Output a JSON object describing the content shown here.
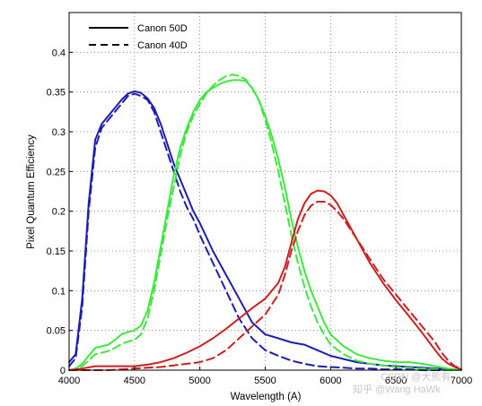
{
  "chart_data": {
    "type": "line",
    "xlabel": "Wavelength (A)",
    "ylabel": "Pixel Quantum Efficiency",
    "xlim": [
      4000,
      7000
    ],
    "ylim": [
      0,
      0.45
    ],
    "xticks": [
      4000,
      4500,
      5000,
      5500,
      6000,
      6500,
      7000
    ],
    "yticks": [
      0,
      0.05,
      0.1,
      0.15,
      0.2,
      0.25,
      0.3,
      0.35,
      0.4
    ],
    "ytick_labels": [
      "0",
      "0.05",
      "0.1",
      "0.15",
      "0.2",
      "0.25",
      "0.3",
      "0.35",
      "0.4"
    ],
    "grid": true,
    "legend_position": "top-left",
    "legend": [
      {
        "label": "Canon 50D",
        "style": "solid"
      },
      {
        "label": "Canon 40D",
        "style": "dashed"
      }
    ],
    "series": [
      {
        "camera": "Canon 50D",
        "channel": "blue",
        "color": "#1d1db0",
        "style": "solid",
        "x": [
          4000,
          4050,
          4100,
          4150,
          4200,
          4250,
          4300,
          4350,
          4400,
          4450,
          4500,
          4550,
          4600,
          4650,
          4700,
          4750,
          4800,
          4850,
          4900,
          4950,
          5000,
          5100,
          5200,
          5300,
          5400,
          5500,
          5600,
          5700,
          5800,
          5900,
          6000,
          6100,
          6200,
          6300,
          6400,
          6500,
          6600,
          6700,
          6800,
          6900,
          7000
        ],
        "y": [
          0.01,
          0.02,
          0.09,
          0.21,
          0.29,
          0.31,
          0.32,
          0.33,
          0.34,
          0.348,
          0.351,
          0.349,
          0.342,
          0.33,
          0.31,
          0.285,
          0.26,
          0.24,
          0.22,
          0.2,
          0.185,
          0.15,
          0.12,
          0.09,
          0.06,
          0.045,
          0.04,
          0.035,
          0.032,
          0.025,
          0.018,
          0.014,
          0.01,
          0.008,
          0.006,
          0.005,
          0.004,
          0.003,
          0.002,
          0.001,
          0.0
        ]
      },
      {
        "camera": "Canon 40D",
        "channel": "blue",
        "color": "#1d1db0",
        "style": "dashed",
        "x": [
          4000,
          4050,
          4100,
          4150,
          4200,
          4250,
          4300,
          4350,
          4400,
          4450,
          4500,
          4550,
          4600,
          4650,
          4700,
          4750,
          4800,
          4850,
          4900,
          4950,
          5000,
          5100,
          5200,
          5300,
          5400,
          5500,
          5600,
          5700,
          5800,
          5900,
          6000,
          6100,
          6200,
          6300,
          6400,
          6500,
          6600,
          6700,
          6800,
          6900,
          7000
        ],
        "y": [
          0.005,
          0.015,
          0.08,
          0.2,
          0.28,
          0.305,
          0.315,
          0.325,
          0.335,
          0.345,
          0.348,
          0.345,
          0.34,
          0.325,
          0.3,
          0.275,
          0.25,
          0.225,
          0.205,
          0.19,
          0.17,
          0.135,
          0.1,
          0.065,
          0.04,
          0.025,
          0.018,
          0.012,
          0.008,
          0.005,
          0.004,
          0.003,
          0.002,
          0.002,
          0.001,
          0.001,
          0.001,
          0.0,
          0.0,
          0.0,
          0.0
        ]
      },
      {
        "camera": "Canon 50D",
        "channel": "green",
        "color": "#3ee83e",
        "style": "solid",
        "x": [
          4000,
          4050,
          4100,
          4150,
          4200,
          4250,
          4300,
          4350,
          4400,
          4450,
          4500,
          4550,
          4600,
          4650,
          4700,
          4750,
          4800,
          4850,
          4900,
          4950,
          5000,
          5050,
          5100,
          5150,
          5200,
          5250,
          5300,
          5350,
          5400,
          5450,
          5500,
          5550,
          5600,
          5650,
          5700,
          5750,
          5800,
          5850,
          5900,
          5950,
          6000,
          6100,
          6200,
          6300,
          6400,
          6500,
          6600,
          6700,
          6800,
          6900,
          7000
        ],
        "y": [
          0.0,
          0.002,
          0.008,
          0.018,
          0.028,
          0.03,
          0.032,
          0.038,
          0.045,
          0.048,
          0.05,
          0.056,
          0.075,
          0.11,
          0.155,
          0.2,
          0.245,
          0.28,
          0.305,
          0.325,
          0.34,
          0.35,
          0.355,
          0.36,
          0.363,
          0.365,
          0.365,
          0.364,
          0.355,
          0.34,
          0.32,
          0.295,
          0.265,
          0.23,
          0.19,
          0.155,
          0.125,
          0.1,
          0.08,
          0.06,
          0.045,
          0.03,
          0.02,
          0.015,
          0.012,
          0.01,
          0.01,
          0.008,
          0.005,
          0.002,
          0.0
        ]
      },
      {
        "camera": "Canon 40D",
        "channel": "green",
        "color": "#3ee83e",
        "style": "dashed",
        "x": [
          4000,
          4050,
          4100,
          4150,
          4200,
          4250,
          4300,
          4350,
          4400,
          4450,
          4500,
          4550,
          4600,
          4650,
          4700,
          4750,
          4800,
          4850,
          4900,
          4950,
          5000,
          5050,
          5100,
          5150,
          5200,
          5250,
          5300,
          5350,
          5400,
          5450,
          5500,
          5550,
          5600,
          5650,
          5700,
          5750,
          5800,
          5850,
          5900,
          5950,
          6000,
          6100,
          6200,
          6300,
          6400,
          6500,
          6600,
          6700,
          6800,
          6900,
          7000
        ],
        "y": [
          0.0,
          0.001,
          0.005,
          0.012,
          0.02,
          0.022,
          0.024,
          0.028,
          0.033,
          0.036,
          0.038,
          0.045,
          0.065,
          0.1,
          0.145,
          0.19,
          0.23,
          0.27,
          0.3,
          0.32,
          0.335,
          0.348,
          0.358,
          0.365,
          0.37,
          0.372,
          0.37,
          0.366,
          0.355,
          0.34,
          0.315,
          0.285,
          0.25,
          0.21,
          0.17,
          0.135,
          0.105,
          0.08,
          0.06,
          0.045,
          0.032,
          0.02,
          0.012,
          0.008,
          0.006,
          0.004,
          0.003,
          0.002,
          0.001,
          0.0,
          0.0
        ]
      },
      {
        "camera": "Canon 50D",
        "channel": "red",
        "color": "#cc2020",
        "style": "solid",
        "x": [
          4000,
          4100,
          4200,
          4300,
          4400,
          4500,
          4600,
          4700,
          4800,
          4900,
          5000,
          5100,
          5200,
          5300,
          5400,
          5500,
          5600,
          5650,
          5700,
          5750,
          5800,
          5850,
          5900,
          5950,
          6000,
          6050,
          6100,
          6200,
          6300,
          6400,
          6500,
          6600,
          6700,
          6800,
          6850,
          6900,
          6950,
          7000
        ],
        "y": [
          0.0,
          0.002,
          0.005,
          0.005,
          0.005,
          0.005,
          0.007,
          0.01,
          0.015,
          0.022,
          0.03,
          0.04,
          0.052,
          0.065,
          0.078,
          0.09,
          0.11,
          0.13,
          0.16,
          0.19,
          0.21,
          0.222,
          0.226,
          0.225,
          0.22,
          0.21,
          0.195,
          0.165,
          0.135,
          0.11,
          0.088,
          0.068,
          0.047,
          0.025,
          0.015,
          0.008,
          0.004,
          0.001
        ]
      },
      {
        "camera": "Canon 40D",
        "channel": "red",
        "color": "#cc2020",
        "style": "dashed",
        "x": [
          4000,
          4100,
          4200,
          4300,
          4400,
          4500,
          4600,
          4700,
          4800,
          4900,
          5000,
          5100,
          5200,
          5300,
          5400,
          5500,
          5600,
          5650,
          5700,
          5750,
          5800,
          5850,
          5900,
          5950,
          6000,
          6050,
          6100,
          6200,
          6300,
          6400,
          6500,
          6600,
          6700,
          6800,
          6850,
          6900,
          6950,
          7000
        ],
        "y": [
          0.0,
          0.0,
          0.0,
          0.0,
          0.001,
          0.002,
          0.003,
          0.004,
          0.006,
          0.008,
          0.01,
          0.015,
          0.025,
          0.04,
          0.055,
          0.07,
          0.095,
          0.12,
          0.15,
          0.175,
          0.195,
          0.207,
          0.212,
          0.212,
          0.208,
          0.2,
          0.19,
          0.165,
          0.14,
          0.115,
          0.095,
          0.075,
          0.055,
          0.035,
          0.022,
          0.012,
          0.005,
          0.002
        ]
      }
    ]
  },
  "watermark": "知乎 @Wang HaWk",
  "watermark_csdn": "CSDN @大熊有"
}
